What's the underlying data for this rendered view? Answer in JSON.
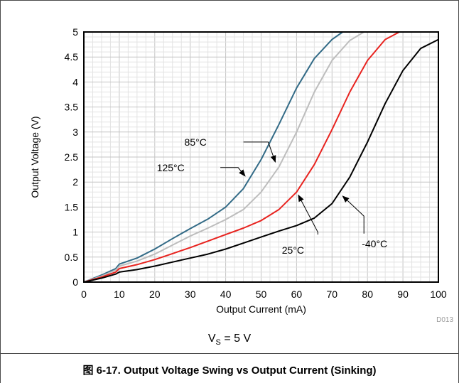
{
  "chart_data": {
    "type": "line",
    "xlabel": "Output Current (mA)",
    "ylabel": "Output Voltage (V)",
    "xlim": [
      0,
      100
    ],
    "ylim": [
      0,
      5
    ],
    "x_ticks": [
      "0",
      "10",
      "20",
      "30",
      "40",
      "50",
      "60",
      "70",
      "80",
      "90",
      "100"
    ],
    "y_ticks": [
      "0",
      "0.5",
      "1",
      "1.5",
      "2",
      "2.5",
      "3",
      "3.5",
      "4",
      "4.5",
      "5"
    ],
    "grid": true,
    "figure_id": "D013",
    "series": [
      {
        "name": "85°C",
        "color": "#336b87",
        "x": [
          0,
          5,
          9,
          10,
          15,
          20,
          25,
          30,
          35,
          40,
          45,
          50,
          55,
          60,
          65,
          70,
          73
        ],
        "y": [
          0,
          0.14,
          0.27,
          0.36,
          0.48,
          0.66,
          0.87,
          1.07,
          1.26,
          1.5,
          1.87,
          2.45,
          3.15,
          3.88,
          4.47,
          4.85,
          5.0
        ]
      },
      {
        "name": "125°C",
        "color": "#bdbdbd",
        "x": [
          0,
          5,
          9,
          10,
          15,
          20,
          25,
          30,
          35,
          40,
          45,
          50,
          55,
          60,
          65,
          70,
          75,
          79
        ],
        "y": [
          0,
          0.12,
          0.24,
          0.32,
          0.42,
          0.56,
          0.74,
          0.92,
          1.08,
          1.25,
          1.45,
          1.8,
          2.3,
          3.0,
          3.8,
          4.43,
          4.83,
          5.0
        ]
      },
      {
        "name": "25°C",
        "color": "#e8231f",
        "x": [
          0,
          5,
          9,
          10,
          15,
          20,
          25,
          30,
          35,
          40,
          45,
          50,
          55,
          60,
          65,
          70,
          75,
          80,
          85,
          89
        ],
        "y": [
          0,
          0.1,
          0.2,
          0.27,
          0.35,
          0.45,
          0.57,
          0.69,
          0.82,
          0.95,
          1.08,
          1.23,
          1.45,
          1.8,
          2.35,
          3.05,
          3.8,
          4.43,
          4.85,
          5.0
        ]
      },
      {
        "name": "-40°C",
        "color": "#000000",
        "x": [
          0,
          5,
          9,
          10,
          15,
          20,
          25,
          30,
          35,
          40,
          45,
          50,
          55,
          60,
          65,
          70,
          75,
          80,
          85,
          90,
          95,
          100
        ],
        "y": [
          0,
          0.08,
          0.16,
          0.2,
          0.25,
          0.32,
          0.4,
          0.48,
          0.56,
          0.66,
          0.78,
          0.9,
          1.02,
          1.13,
          1.28,
          1.57,
          2.1,
          2.8,
          3.57,
          4.23,
          4.67,
          4.85
        ]
      }
    ],
    "annotations": [
      {
        "text": "85°C",
        "series": "85°C",
        "label_at": [
          31.5,
          2.8
        ],
        "tail": [
          45,
          2.8
        ],
        "corner": [
          52,
          2.8
        ],
        "target": [
          54,
          2.4
        ]
      },
      {
        "text": "125°C",
        "series": "125°C",
        "label_at": [
          24.5,
          2.29
        ],
        "tail": [
          38.5,
          2.29
        ],
        "corner": [
          43.5,
          2.29
        ],
        "target": [
          45.5,
          2.12
        ]
      },
      {
        "text": "25°C",
        "series": "25°C",
        "label_at": [
          59,
          0.64
        ],
        "tail": [
          66,
          0.95
        ],
        "corner": [
          66,
          1.0
        ],
        "target": [
          60.5,
          1.74
        ]
      },
      {
        "text": "-40°C",
        "series": "-40°C",
        "label_at": [
          82,
          0.77
        ],
        "tail": [
          79,
          0.97
        ],
        "corner": [
          79,
          1.32
        ],
        "target": [
          73,
          1.72
        ]
      }
    ]
  },
  "condition_text": "V",
  "condition_sub": "S",
  "condition_rest": " = 5 V",
  "caption": "图 6-17. Output Voltage Swing vs Output Current (Sinking)"
}
